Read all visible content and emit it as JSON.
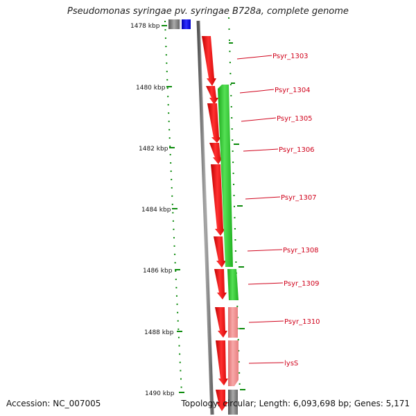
{
  "title": "Pseudomonas syringae pv. syringae B728a, complete genome",
  "footer": {
    "accession": "Accession: NC_007005",
    "topology": "Topology: circular; Length: 6,093,698 bp; Genes: 5,171"
  },
  "scale_ticks": [
    "1478 kbp",
    "1480 kbp",
    "1482 kbp",
    "1484 kbp",
    "1486 kbp",
    "1488 kbp",
    "1490 kbp"
  ],
  "gene_labels": [
    "Psyr_1303",
    "Psyr_1304",
    "Psyr_1305",
    "Psyr_1306",
    "Psyr_1307",
    "Psyr_1308",
    "Psyr_1309",
    "Psyr_1310",
    "lysS"
  ],
  "colors": {
    "forward_cds": "#ff1a1a",
    "reverse_cds": "#22cc22",
    "pale_cds": "#f08a8a",
    "blue_feature": "#0000ee",
    "backbone": "#7a7a7a",
    "tick_green": "#0a8a0a",
    "label_red": "#d0021b"
  }
}
